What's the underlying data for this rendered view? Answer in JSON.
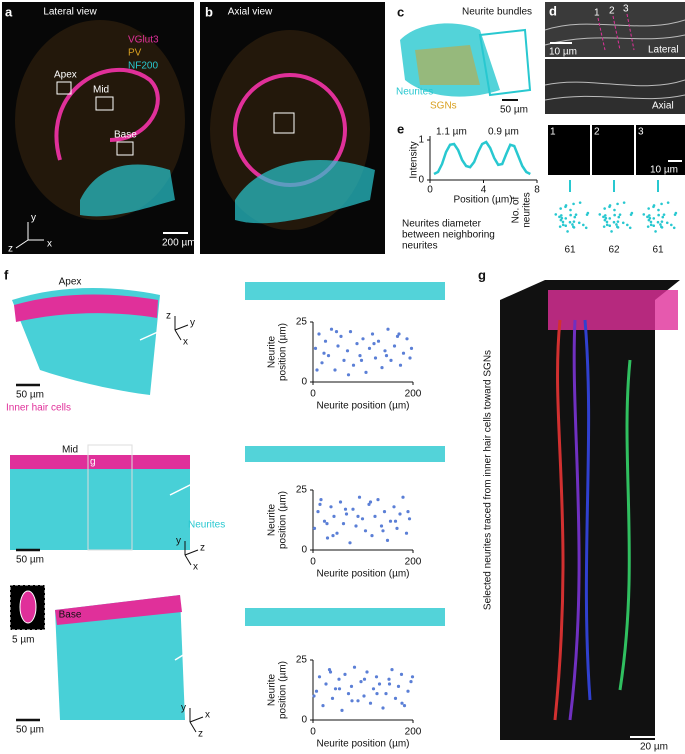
{
  "panels": {
    "a": {
      "letter": "a",
      "title": "Lateral view",
      "legend": [
        {
          "name": "VGlut3",
          "color": "#e0309a"
        },
        {
          "name": "PV",
          "color": "#d9a020"
        },
        {
          "name": "NF200",
          "color": "#28c8d0"
        }
      ],
      "boxes": [
        "Apex",
        "Mid",
        "Base"
      ],
      "axes": [
        "y",
        "z",
        "x"
      ],
      "scale": "200 µm"
    },
    "b": {
      "letter": "b",
      "title": "Axial view"
    },
    "c": {
      "letter": "c",
      "labels": [
        "Neurite bundles",
        "Neurites",
        "SGNs"
      ],
      "scale": "50 µm"
    },
    "d": {
      "letter": "d",
      "lines": [
        "1",
        "2",
        "3"
      ],
      "scale": "10 µm",
      "views": [
        "Lateral",
        "Axial"
      ]
    },
    "e": {
      "letter": "e",
      "chart": {
        "type": "line",
        "ylabel": "Intensity",
        "xlabel": "Position (µm)",
        "x": [
          0.3,
          0.6,
          0.9,
          1.2,
          1.5,
          1.8,
          2.1,
          2.4,
          2.7,
          3.0,
          3.3,
          3.6,
          3.9,
          4.2,
          4.5,
          4.8,
          5.1,
          5.4,
          5.7,
          6.0,
          6.3,
          6.6,
          6.9,
          7.2,
          7.5
        ],
        "values": [
          0.15,
          0.2,
          0.4,
          0.7,
          0.88,
          0.9,
          0.75,
          0.5,
          0.35,
          0.32,
          0.45,
          0.7,
          0.9,
          0.95,
          0.8,
          0.55,
          0.38,
          0.4,
          0.65,
          0.88,
          0.85,
          0.6,
          0.35,
          0.2,
          0.15
        ],
        "xlim": [
          0,
          8
        ],
        "ylim": [
          0,
          1
        ],
        "xticks": [
          0,
          4,
          8
        ],
        "yticks": [
          0,
          1
        ],
        "color": "#28c8d0",
        "annotations": [
          "1.1 µm",
          "0.9 µm"
        ]
      },
      "note": [
        "Neurites diameter",
        "between neighboring",
        "neurites"
      ],
      "sections": [
        "1",
        "2",
        "3"
      ],
      "section_scale": "10 µm",
      "count_label": [
        "No. of",
        "neurites"
      ],
      "counts": [
        "61",
        "62",
        "61"
      ]
    },
    "f": {
      "letter": "f",
      "labels": {
        "ihc": "Inner hair cells",
        "neurites": "Neurites",
        "g": "g",
        "inset_scale": "5 µm"
      },
      "rows": [
        {
          "name": "Apex",
          "scale": "50 µm",
          "axes": [
            "z",
            "y",
            "x"
          ],
          "chart": {
            "type": "scatter",
            "ylabel": [
              "Neurite",
              "position (µm)"
            ],
            "xlabel": "Neurite position (µm)",
            "color": "#5b7fd6",
            "xlim": [
              0,
              200
            ],
            "ylim": [
              0,
              25
            ],
            "xticks": [
              0,
              200
            ],
            "yticks": [
              0,
              25
            ],
            "x": [
              5,
              12,
              18,
              25,
              31,
              37,
              44,
              50,
              56,
              62,
              69,
              75,
              81,
              88,
              94,
              100,
              106,
              113,
              119,
              125,
              131,
              138,
              144,
              150,
              156,
              163,
              169,
              175,
              181,
              188,
              194,
              8,
              22,
              47,
              71,
              97,
              122,
              147,
              172,
              197
            ],
            "values": [
              14,
              20,
              8,
              17,
              11,
              22,
              5,
              15,
              19,
              9,
              13,
              21,
              7,
              16,
              11,
              18,
              4,
              14,
              20,
              10,
              17,
              6,
              13,
              22,
              9,
              15,
              19,
              7,
              12,
              18,
              10,
              5,
              12,
              21,
              3,
              9,
              16,
              11,
              20,
              14
            ]
          }
        },
        {
          "name": "Mid",
          "scale": "50 µm",
          "axes": [
            "y",
            "z",
            "x"
          ],
          "chart": {
            "type": "scatter",
            "ylabel": [
              "Neurite",
              "position (µm)"
            ],
            "xlabel": "Neurite position (µm)",
            "color": "#5b7fd6",
            "xlim": [
              0,
              200
            ],
            "ylim": [
              0,
              25
            ],
            "xticks": [
              0,
              200
            ],
            "yticks": [
              0,
              25
            ],
            "x": [
              3,
              10,
              16,
              23,
              29,
              36,
              42,
              48,
              55,
              61,
              67,
              74,
              80,
              86,
              93,
              99,
              105,
              112,
              118,
              124,
              130,
              137,
              143,
              149,
              155,
              162,
              168,
              174,
              180,
              187,
              193,
              14,
              28,
              40,
              65,
              90,
              115,
              140,
              165,
              190
            ],
            "values": [
              9,
              16,
              21,
              12,
              5,
              18,
              14,
              7,
              20,
              11,
              15,
              3,
              17,
              10,
              22,
              13,
              8,
              19,
              6,
              14,
              21,
              10,
              16,
              4,
              12,
              18,
              9,
              15,
              22,
              7,
              13,
              19,
              11,
              6,
              17,
              14,
              20,
              8,
              12,
              16
            ]
          }
        },
        {
          "name": "Base",
          "scale": "50 µm",
          "axes": [
            "y",
            "x",
            "z"
          ],
          "chart": {
            "type": "scatter",
            "ylabel": [
              "Neurite",
              "position (µm)"
            ],
            "xlabel": "Neurite position (µm)",
            "color": "#5b7fd6",
            "xlim": [
              0,
              200
            ],
            "ylim": [
              0,
              25
            ],
            "xticks": [
              0,
              200
            ],
            "yticks": [
              0,
              25
            ],
            "x": [
              7,
              13,
              20,
              26,
              33,
              39,
              45,
              52,
              58,
              64,
              71,
              77,
              83,
              90,
              96,
              102,
              108,
              115,
              121,
              127,
              133,
              140,
              146,
              152,
              158,
              165,
              171,
              177,
              183,
              190,
              196,
              2,
              35,
              53,
              78,
              103,
              128,
              153,
              178,
              199
            ],
            "values": [
              12,
              18,
              6,
              15,
              21,
              9,
              13,
              17,
              4,
              19,
              11,
              14,
              22,
              8,
              16,
              10,
              20,
              7,
              13,
              18,
              15,
              5,
              11,
              17,
              21,
              9,
              14,
              19,
              6,
              12,
              16,
              10,
              20,
              13,
              8,
              17,
              11,
              15,
              7,
              18
            ]
          }
        }
      ]
    },
    "g": {
      "letter": "g",
      "label": "Selected neurites traced from inner hair cells toward SGNs",
      "scale": "20 µm"
    }
  }
}
